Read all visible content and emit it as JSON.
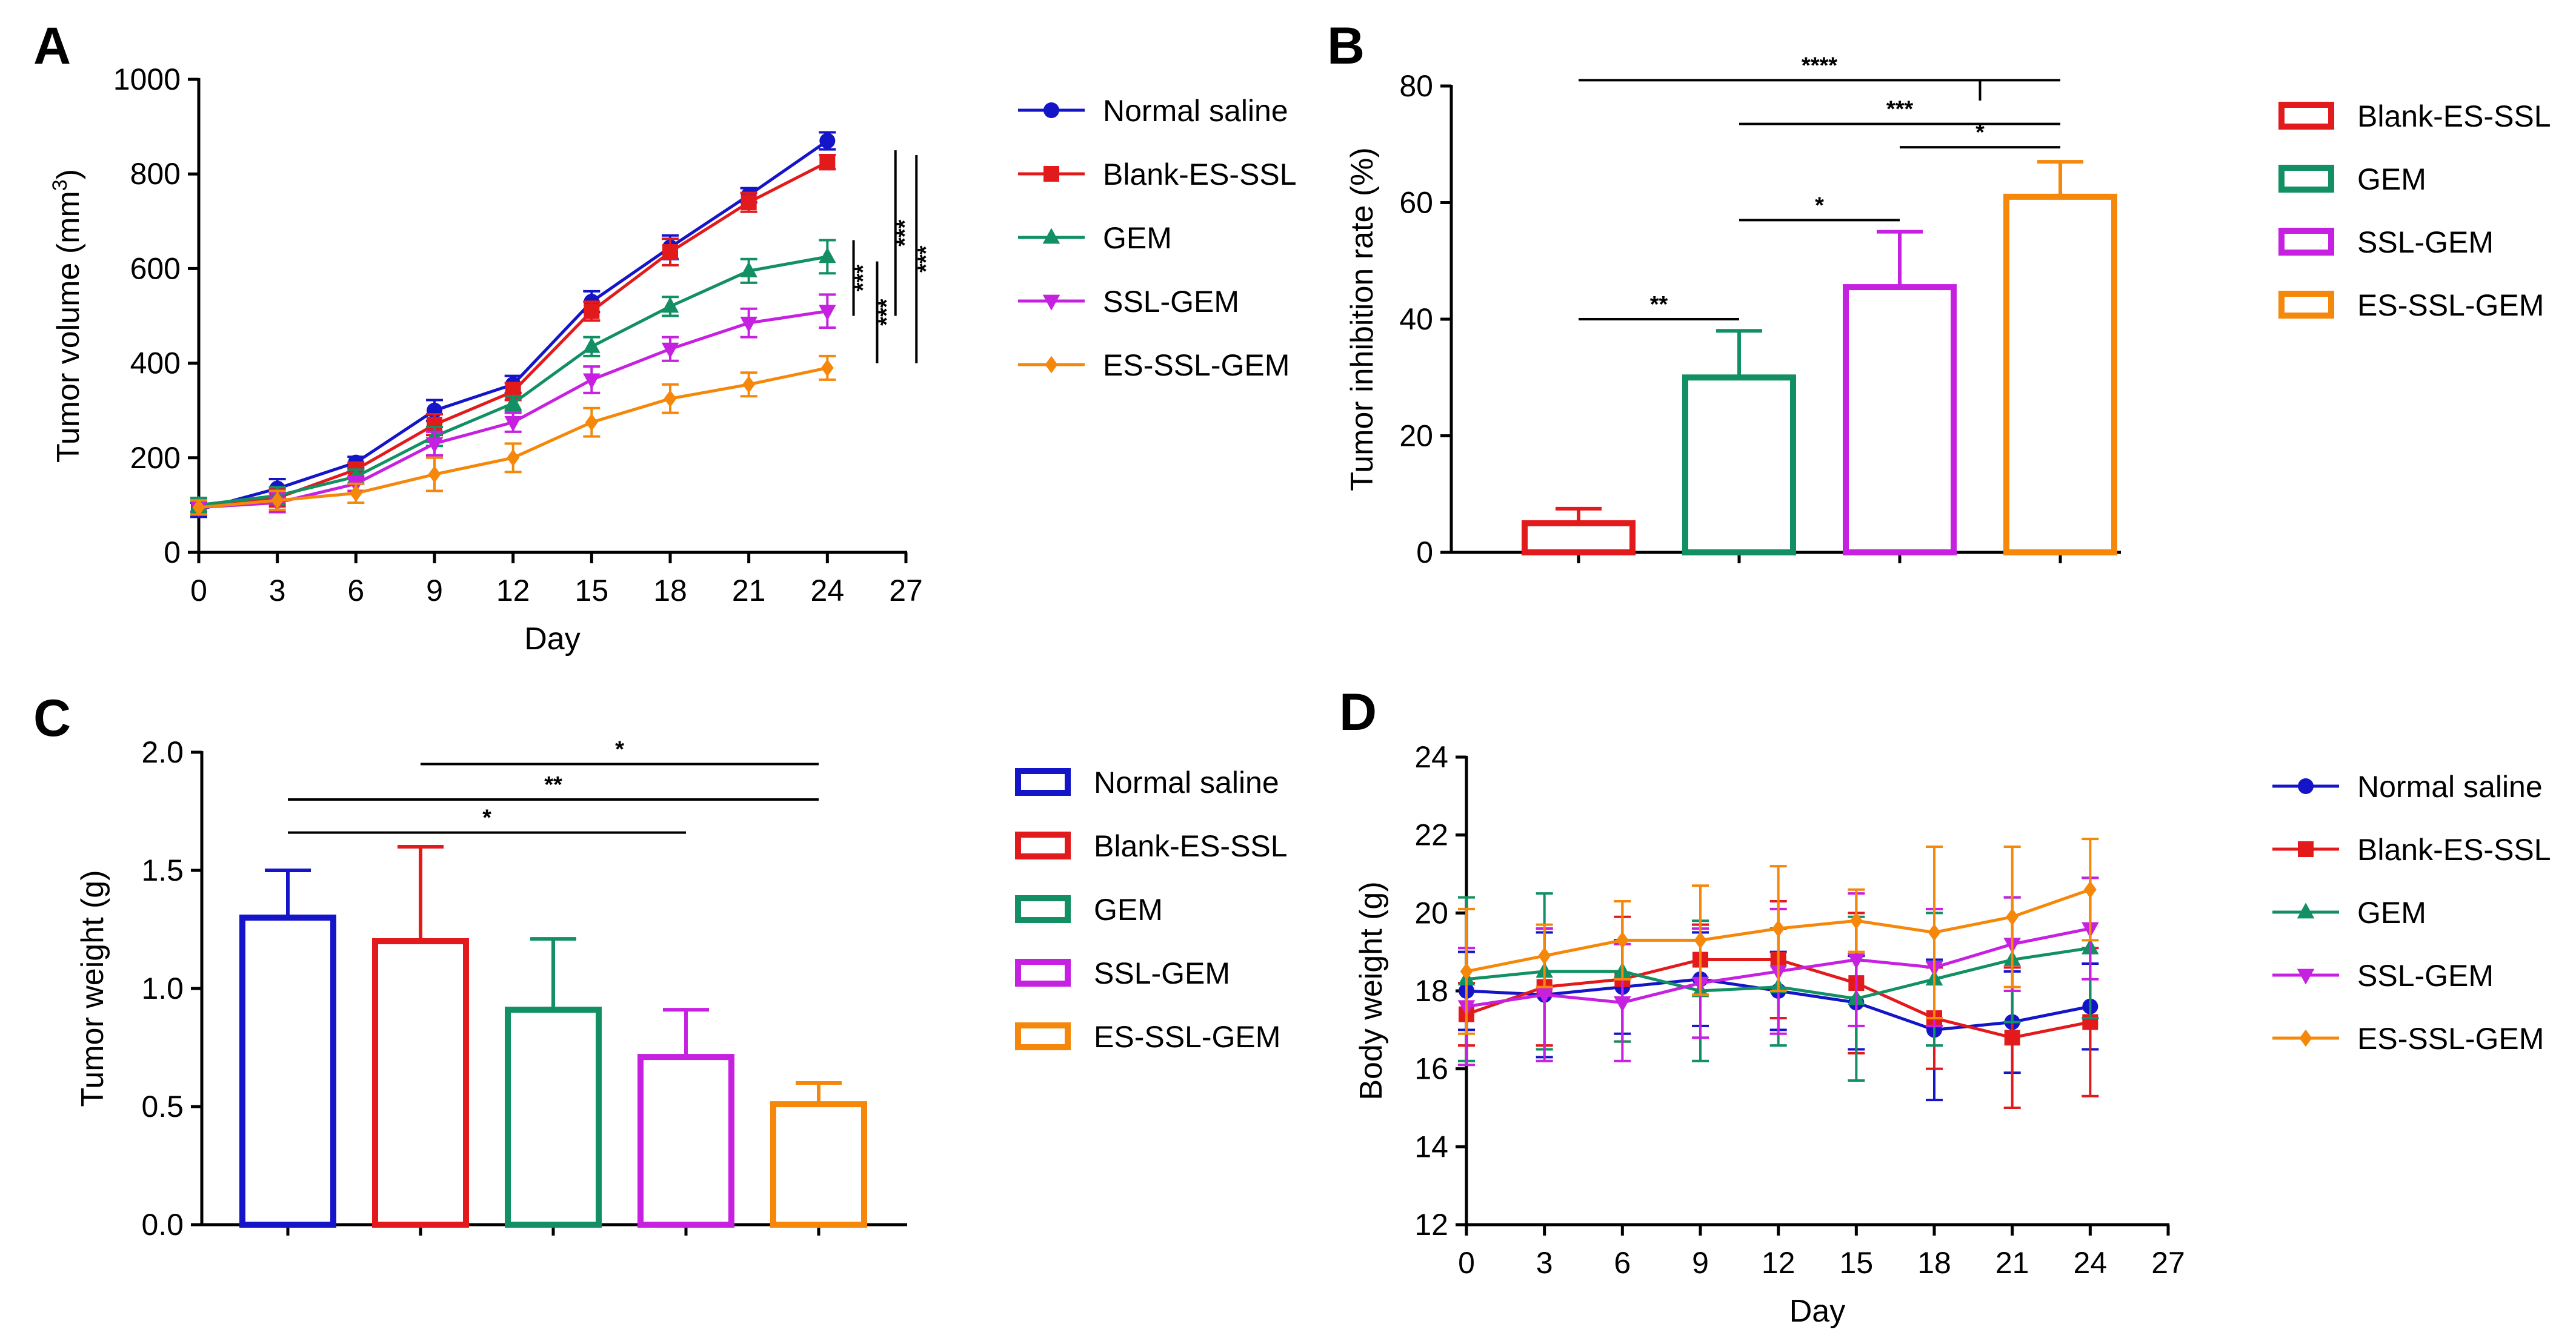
{
  "chart_data": [
    {
      "id": "A",
      "panel_label": "A",
      "type": "line",
      "xlabel": "Day",
      "ylabel": "Tumor volume (mm",
      "ylabel_sup": "3",
      "ylabel_tail": ")",
      "xlim": [
        0,
        27
      ],
      "ylim": [
        0,
        1000
      ],
      "xticks": [
        0,
        3,
        6,
        9,
        12,
        15,
        18,
        21,
        24,
        27
      ],
      "yticks": [
        0,
        200,
        400,
        600,
        800,
        1000
      ],
      "x": [
        0,
        3,
        6,
        9,
        12,
        15,
        18,
        21,
        24
      ],
      "series": [
        {
          "name": "Normal saline",
          "color": "#1414c8",
          "marker": "circle",
          "values": [
            90,
            135,
            190,
            300,
            355,
            530,
            645,
            755,
            870
          ],
          "errors": [
            15,
            20,
            12,
            22,
            18,
            22,
            25,
            15,
            18
          ]
        },
        {
          "name": "Blank-ES-SSL",
          "color": "#e31a1c",
          "marker": "square",
          "values": [
            100,
            115,
            175,
            270,
            340,
            510,
            635,
            740,
            825
          ],
          "errors": [
            15,
            18,
            15,
            22,
            18,
            20,
            28,
            20,
            15
          ]
        },
        {
          "name": "GEM",
          "color": "#129063",
          "marker": "triangle-up",
          "values": [
            100,
            120,
            160,
            245,
            315,
            435,
            520,
            595,
            625
          ],
          "errors": [
            15,
            18,
            15,
            20,
            15,
            20,
            20,
            25,
            35
          ]
        },
        {
          "name": "SSL-GEM",
          "color": "#c620e0",
          "marker": "triangle-down",
          "values": [
            95,
            105,
            145,
            230,
            275,
            365,
            430,
            485,
            510
          ],
          "errors": [
            15,
            20,
            15,
            25,
            20,
            28,
            25,
            30,
            35
          ]
        },
        {
          "name": "ES-SSL-GEM",
          "color": "#f5870a",
          "marker": "diamond",
          "values": [
            95,
            110,
            125,
            165,
            200,
            275,
            325,
            355,
            390
          ],
          "errors": [
            15,
            20,
            20,
            35,
            30,
            30,
            30,
            25,
            25
          ]
        }
      ],
      "significance": [
        {
          "label": "***",
          "x": 25.0,
          "y1": 660,
          "y2": 500
        },
        {
          "label": "***",
          "x": 25.9,
          "y1": 615,
          "y2": 400
        },
        {
          "label": "***",
          "x": 26.6,
          "y1": 850,
          "y2": 500
        },
        {
          "label": "***",
          "x": 27.4,
          "y1": 840,
          "y2": 400
        }
      ]
    },
    {
      "id": "B",
      "panel_label": "B",
      "type": "bar",
      "ylabel": "Tumor inhibition rate (%)",
      "ylim": [
        0,
        80
      ],
      "yticks": [
        0,
        20,
        40,
        60,
        80
      ],
      "categories": [
        "Blank-ES-SSL",
        "GEM",
        "SSL-GEM",
        "ES-SSL-GEM"
      ],
      "colors": [
        "#e31a1c",
        "#129063",
        "#c620e0",
        "#f5870a"
      ],
      "values": [
        5,
        30,
        45.5,
        61
      ],
      "errors": [
        2.5,
        8,
        9.5,
        6
      ],
      "significance": [
        {
          "label": "**",
          "from": 0,
          "to": 1,
          "y": 40
        },
        {
          "label": "*",
          "from": 1,
          "to": 2,
          "y": 57
        },
        {
          "label": "*",
          "from": 2,
          "to": 3,
          "y": 69.5
        },
        {
          "label": "***",
          "from": 1,
          "to": 3,
          "y": 73.5
        },
        {
          "label": "****",
          "from": 0,
          "to": 3,
          "y": 81,
          "bracket_to_y": 77.5,
          "bracket_from": 2,
          "bracket_to": 3
        }
      ]
    },
    {
      "id": "C",
      "panel_label": "C",
      "type": "bar",
      "ylabel": "Tumor weight (g)",
      "ylim": [
        0,
        2.0
      ],
      "yticks": [
        "0.0",
        "0.5",
        "1.0",
        "1.5",
        "2.0"
      ],
      "categories": [
        "Normal saline",
        "Blank-ES-SSL",
        "GEM",
        "SSL-GEM",
        "ES-SSL-GEM"
      ],
      "colors": [
        "#1414c8",
        "#e31a1c",
        "#129063",
        "#c620e0",
        "#f5870a"
      ],
      "values": [
        1.3,
        1.2,
        0.91,
        0.71,
        0.51
      ],
      "errors": [
        0.2,
        0.4,
        0.3,
        0.2,
        0.09
      ],
      "significance": [
        {
          "label": "*",
          "from": 1,
          "to": 4,
          "y": 1.95
        },
        {
          "label": "**",
          "from": 0,
          "to": 4,
          "y": 1.8
        },
        {
          "label": "*",
          "from": 0,
          "to": 3,
          "y": 1.66
        }
      ]
    },
    {
      "id": "D",
      "panel_label": "D",
      "type": "line",
      "xlabel": "Day",
      "ylabel": "Body weight (g)",
      "xlim": [
        0,
        27
      ],
      "ylim": [
        12,
        24
      ],
      "xticks": [
        0,
        3,
        6,
        9,
        12,
        15,
        18,
        21,
        24,
        27
      ],
      "yticks": [
        12,
        14,
        16,
        18,
        20,
        22,
        24
      ],
      "x": [
        0,
        3,
        6,
        9,
        12,
        15,
        18,
        21,
        24
      ],
      "series": [
        {
          "name": "Normal saline",
          "color": "#1414c8",
          "marker": "circle",
          "values": [
            18.0,
            17.9,
            18.1,
            18.3,
            18.0,
            17.7,
            17.0,
            17.2,
            17.6
          ],
          "errors": [
            1.0,
            1.6,
            1.2,
            1.2,
            1.0,
            1.2,
            1.8,
            1.3,
            1.1
          ]
        },
        {
          "name": "Blank-ES-SSL",
          "color": "#e31a1c",
          "marker": "square",
          "values": [
            17.4,
            18.1,
            18.3,
            18.8,
            18.8,
            18.2,
            17.3,
            16.8,
            17.2
          ],
          "errors": [
            0.8,
            1.5,
            1.6,
            0.9,
            1.5,
            1.8,
            1.3,
            1.8,
            1.9
          ]
        },
        {
          "name": "GEM",
          "color": "#129063",
          "marker": "triangle-up",
          "values": [
            18.3,
            18.5,
            18.5,
            18.0,
            18.1,
            17.8,
            18.3,
            18.8,
            19.1
          ],
          "errors": [
            2.1,
            2.0,
            1.8,
            1.8,
            1.5,
            2.1,
            1.7,
            1.6,
            1.8
          ]
        },
        {
          "name": "SSL-GEM",
          "color": "#c620e0",
          "marker": "triangle-down",
          "values": [
            17.6,
            17.9,
            17.7,
            18.2,
            18.5,
            18.8,
            18.6,
            19.2,
            19.6
          ],
          "errors": [
            1.5,
            1.7,
            1.5,
            1.4,
            1.6,
            1.7,
            1.5,
            1.2,
            1.3
          ]
        },
        {
          "name": "ES-SSL-GEM",
          "color": "#f5870a",
          "marker": "diamond",
          "values": [
            18.5,
            18.9,
            19.3,
            19.3,
            19.6,
            19.8,
            19.5,
            19.9,
            20.6
          ],
          "errors": [
            1.6,
            0.8,
            1.0,
            1.4,
            1.6,
            0.8,
            2.2,
            1.8,
            1.3
          ]
        }
      ]
    }
  ]
}
